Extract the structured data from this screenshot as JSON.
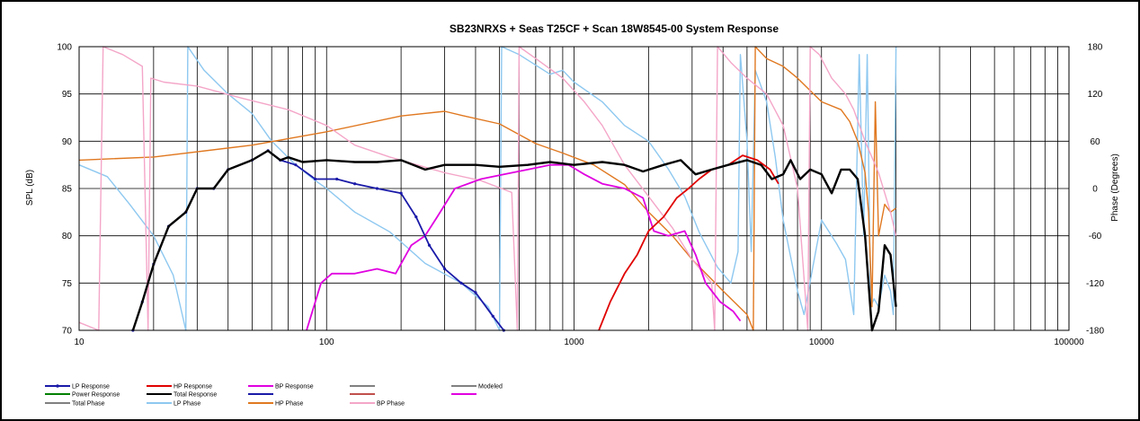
{
  "chart_data": {
    "type": "line",
    "title": "SB23NRXS  + Seas T25CF  + Scan 18W8545-00   System Response",
    "xlabel": "",
    "ylabel": "SPL (dB)",
    "y2label": "Phase (Degrees)",
    "xscale": "log",
    "xlim": [
      10,
      100000
    ],
    "ylim": [
      70,
      100
    ],
    "y2lim": [
      -180,
      180
    ],
    "grid": true,
    "xtick_labels": [
      "10",
      "100",
      "1000",
      "10000",
      "100000"
    ],
    "ytick_labels": [
      "70",
      "75",
      "80",
      "85",
      "90",
      "95",
      "100"
    ],
    "y2tick_labels": [
      "-180",
      "-120",
      "-60",
      "0",
      "60",
      "120",
      "180"
    ],
    "legend": {
      "placement": "bottom",
      "entries": [
        {
          "label": "LP Response",
          "color": "#1a1aa8",
          "marker": true
        },
        {
          "label": "HP Response",
          "color": "#e00000"
        },
        {
          "label": "BP Response",
          "color": "#e000e0"
        },
        {
          "label": "",
          "color": "#808080"
        },
        {
          "label": "Modeled",
          "color": "#808080"
        },
        {
          "label": "Power Response",
          "color": "#008000"
        },
        {
          "label": "Total Response",
          "color": "#000000"
        },
        {
          "label": "",
          "color": "#1a1aa8"
        },
        {
          "label": "",
          "color": "#c0504d"
        },
        {
          "label": "",
          "color": "#e000e0"
        },
        {
          "label": "Total Phase",
          "color": "#808080"
        },
        {
          "label": "LP Phase",
          "color": "#8ec8f0"
        },
        {
          "label": "HP Phase",
          "color": "#e07820"
        },
        {
          "label": "BP Phase",
          "color": "#f4a6c8"
        }
      ]
    },
    "series": [
      {
        "name": "LP Response",
        "color": "#1a1aa8",
        "axis": "left",
        "points": [
          [
            16.5,
            70
          ],
          [
            18,
            73
          ],
          [
            20,
            77
          ],
          [
            23,
            81
          ],
          [
            27,
            82.5
          ],
          [
            30,
            85
          ],
          [
            35,
            85
          ],
          [
            40,
            87
          ],
          [
            50,
            88
          ],
          [
            58,
            89
          ],
          [
            65,
            88
          ],
          [
            75,
            87.5
          ],
          [
            90,
            86
          ],
          [
            110,
            86
          ],
          [
            130,
            85.5
          ],
          [
            160,
            85
          ],
          [
            200,
            84.5
          ],
          [
            230,
            82
          ],
          [
            260,
            79
          ],
          [
            300,
            76.5
          ],
          [
            350,
            75
          ],
          [
            400,
            74
          ],
          [
            470,
            71.5
          ],
          [
            520,
            70
          ]
        ]
      },
      {
        "name": "HP Response",
        "color": "#e00000",
        "axis": "left",
        "points": [
          [
            1260,
            70
          ],
          [
            1400,
            73
          ],
          [
            1600,
            76
          ],
          [
            1800,
            78
          ],
          [
            2000,
            80.5
          ],
          [
            2300,
            82
          ],
          [
            2600,
            84
          ],
          [
            2900,
            85
          ],
          [
            3200,
            86
          ],
          [
            3600,
            87
          ],
          [
            4200,
            87.5
          ],
          [
            4800,
            88.5
          ],
          [
            5500,
            88
          ],
          [
            6200,
            87
          ],
          [
            6700,
            85.5
          ]
        ]
      },
      {
        "name": "BP Response",
        "color": "#e000e0",
        "axis": "left",
        "points": [
          [
            83,
            70
          ],
          [
            95,
            75
          ],
          [
            105,
            76
          ],
          [
            130,
            76
          ],
          [
            160,
            76.5
          ],
          [
            190,
            76
          ],
          [
            220,
            79
          ],
          [
            250,
            80
          ],
          [
            280,
            82
          ],
          [
            330,
            85
          ],
          [
            420,
            86
          ],
          [
            520,
            86.5
          ],
          [
            650,
            87
          ],
          [
            800,
            87.5
          ],
          [
            950,
            87.5
          ],
          [
            1100,
            86.5
          ],
          [
            1300,
            85.5
          ],
          [
            1600,
            85
          ],
          [
            1900,
            84
          ],
          [
            2100,
            80.5
          ],
          [
            2400,
            80
          ],
          [
            2800,
            80.5
          ],
          [
            3100,
            78
          ],
          [
            3400,
            75
          ],
          [
            3900,
            73
          ],
          [
            4400,
            72
          ],
          [
            4700,
            71
          ]
        ]
      },
      {
        "name": "Total Response",
        "color": "#000000",
        "axis": "left",
        "points": [
          [
            16.5,
            70
          ],
          [
            18,
            73
          ],
          [
            20,
            77
          ],
          [
            23,
            81
          ],
          [
            27,
            82.5
          ],
          [
            30,
            85
          ],
          [
            35,
            85
          ],
          [
            40,
            87
          ],
          [
            50,
            88
          ],
          [
            58,
            89
          ],
          [
            65,
            88
          ],
          [
            70,
            88.3
          ],
          [
            80,
            87.8
          ],
          [
            100,
            88
          ],
          [
            130,
            87.8
          ],
          [
            160,
            87.8
          ],
          [
            200,
            88
          ],
          [
            250,
            87
          ],
          [
            300,
            87.5
          ],
          [
            400,
            87.5
          ],
          [
            500,
            87.3
          ],
          [
            650,
            87.5
          ],
          [
            800,
            87.8
          ],
          [
            1000,
            87.5
          ],
          [
            1300,
            87.8
          ],
          [
            1600,
            87.5
          ],
          [
            1900,
            86.8
          ],
          [
            2300,
            87.5
          ],
          [
            2700,
            88
          ],
          [
            3100,
            86.5
          ],
          [
            3600,
            87
          ],
          [
            4200,
            87.5
          ],
          [
            5000,
            88
          ],
          [
            5700,
            87.5
          ],
          [
            6300,
            86
          ],
          [
            7000,
            86.5
          ],
          [
            7500,
            88
          ],
          [
            8200,
            86
          ],
          [
            9000,
            87
          ],
          [
            10000,
            86.5
          ],
          [
            11000,
            84.5
          ],
          [
            12000,
            87
          ],
          [
            13000,
            87
          ],
          [
            14000,
            86
          ],
          [
            15000,
            80
          ],
          [
            16000,
            70
          ],
          [
            17000,
            72
          ],
          [
            18000,
            79
          ],
          [
            19000,
            78
          ],
          [
            20000,
            72.5
          ]
        ]
      },
      {
        "name": "LP Phase",
        "color": "#8ec8f0",
        "axis": "right",
        "points": [
          [
            10,
            30
          ],
          [
            13,
            15
          ],
          [
            16,
            -20
          ],
          [
            20,
            -60
          ],
          [
            24,
            -110
          ],
          [
            27,
            -180
          ],
          [
            27.5,
            180
          ],
          [
            32,
            150
          ],
          [
            40,
            120
          ],
          [
            50,
            95
          ],
          [
            60,
            60
          ],
          [
            75,
            30
          ],
          [
            90,
            10
          ],
          [
            100,
            0
          ],
          [
            130,
            -30
          ],
          [
            180,
            -55
          ],
          [
            250,
            -95
          ],
          [
            350,
            -120
          ],
          [
            450,
            -150
          ],
          [
            500,
            -180
          ],
          [
            510,
            180
          ],
          [
            600,
            170
          ],
          [
            800,
            145
          ],
          [
            900,
            150
          ],
          [
            1000,
            135
          ],
          [
            1300,
            110
          ],
          [
            1600,
            80
          ],
          [
            2000,
            60
          ],
          [
            2400,
            25
          ],
          [
            2800,
            -10
          ],
          [
            3200,
            -55
          ],
          [
            3800,
            -100
          ],
          [
            4300,
            -120
          ],
          [
            4600,
            -80
          ],
          [
            4700,
            170
          ],
          [
            5000,
            60
          ],
          [
            5200,
            -80
          ],
          [
            5400,
            150
          ],
          [
            6000,
            110
          ],
          [
            6500,
            40
          ],
          [
            7000,
            -40
          ],
          [
            8000,
            -130
          ],
          [
            8500,
            -160
          ],
          [
            10000,
            -40
          ],
          [
            11500,
            -70
          ],
          [
            12500,
            -90
          ],
          [
            13500,
            -160
          ],
          [
            14200,
            170
          ],
          [
            14800,
            -60
          ],
          [
            15300,
            170
          ],
          [
            15800,
            -150
          ],
          [
            16300,
            -140
          ],
          [
            17000,
            -150
          ],
          [
            18000,
            -110
          ],
          [
            19000,
            -130
          ],
          [
            19500,
            -160
          ],
          [
            20000,
            180
          ]
        ]
      },
      {
        "name": "HP Phase",
        "color": "#e07820",
        "axis": "right",
        "points": [
          [
            10,
            36
          ],
          [
            20,
            40
          ],
          [
            50,
            55
          ],
          [
            100,
            72
          ],
          [
            200,
            92
          ],
          [
            300,
            98
          ],
          [
            350,
            93
          ],
          [
            500,
            82
          ],
          [
            700,
            57
          ],
          [
            900,
            45
          ],
          [
            1200,
            30
          ],
          [
            1600,
            5
          ],
          [
            2000,
            -30
          ],
          [
            2500,
            -60
          ],
          [
            3000,
            -90
          ],
          [
            4000,
            -130
          ],
          [
            5000,
            -160
          ],
          [
            5300,
            -180
          ],
          [
            5400,
            180
          ],
          [
            6000,
            165
          ],
          [
            7000,
            155
          ],
          [
            8000,
            140
          ],
          [
            10000,
            110
          ],
          [
            12000,
            100
          ],
          [
            13000,
            85
          ],
          [
            14000,
            60
          ],
          [
            15000,
            20
          ],
          [
            15500,
            -30
          ],
          [
            16000,
            -150
          ],
          [
            16500,
            110
          ],
          [
            17000,
            -60
          ],
          [
            18000,
            -20
          ],
          [
            19000,
            -30
          ],
          [
            20000,
            -25
          ]
        ]
      },
      {
        "name": "BP Phase",
        "color": "#f4a6c8",
        "axis": "right",
        "points": [
          [
            10,
            -170
          ],
          [
            12,
            -180
          ],
          [
            12.5,
            180
          ],
          [
            15,
            170
          ],
          [
            18,
            155
          ],
          [
            19,
            -180
          ],
          [
            19.5,
            140
          ],
          [
            22,
            135
          ],
          [
            30,
            130
          ],
          [
            45,
            115
          ],
          [
            70,
            100
          ],
          [
            100,
            80
          ],
          [
            130,
            55
          ],
          [
            180,
            40
          ],
          [
            300,
            20
          ],
          [
            420,
            10
          ],
          [
            560,
            -5
          ],
          [
            590,
            -180
          ],
          [
            600,
            180
          ],
          [
            700,
            165
          ],
          [
            900,
            140
          ],
          [
            1100,
            110
          ],
          [
            1300,
            80
          ],
          [
            1600,
            30
          ],
          [
            2000,
            -10
          ],
          [
            2500,
            -50
          ],
          [
            3000,
            -90
          ],
          [
            3600,
            -120
          ],
          [
            3700,
            -180
          ],
          [
            3800,
            180
          ],
          [
            4300,
            160
          ],
          [
            5000,
            140
          ],
          [
            6000,
            120
          ],
          [
            7000,
            80
          ],
          [
            8000,
            0
          ],
          [
            8800,
            -180
          ],
          [
            9000,
            180
          ],
          [
            9800,
            170
          ],
          [
            11000,
            140
          ],
          [
            12500,
            120
          ],
          [
            13500,
            100
          ],
          [
            15000,
            60
          ],
          [
            17000,
            20
          ],
          [
            19000,
            -30
          ],
          [
            20000,
            -60
          ]
        ]
      }
    ]
  }
}
